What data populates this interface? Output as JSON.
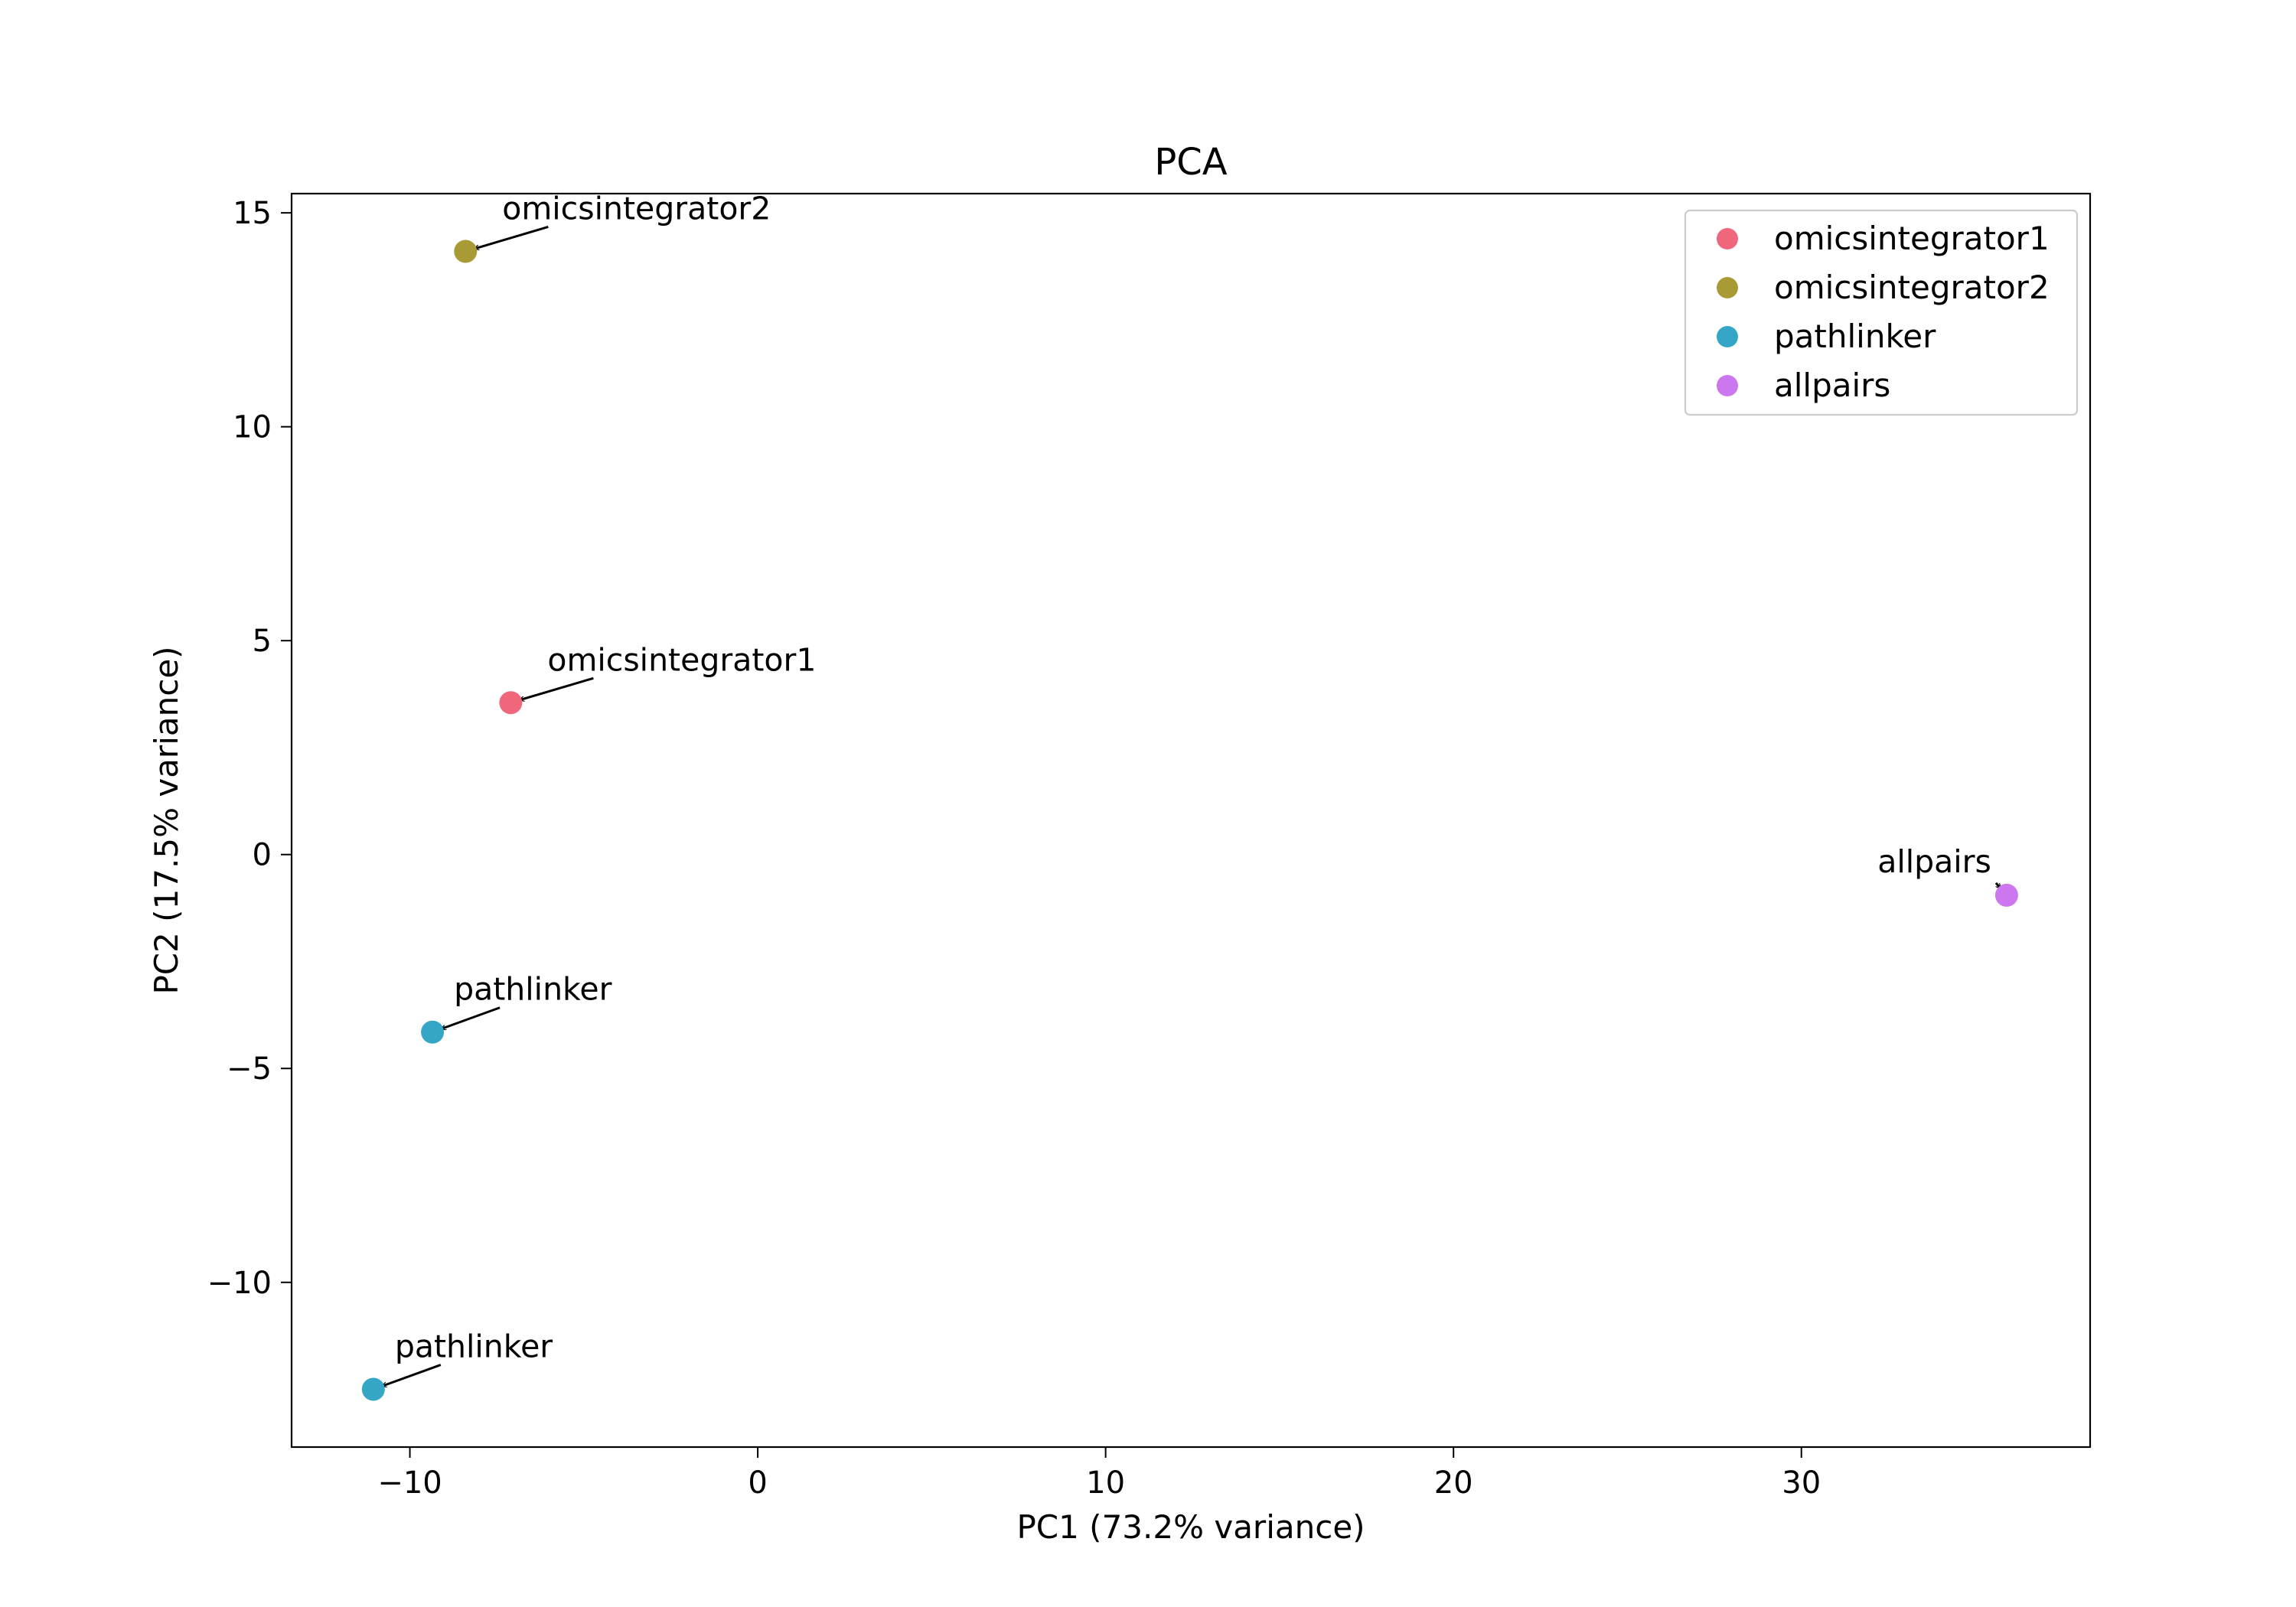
{
  "chart_data": {
    "type": "scatter",
    "title": "PCA",
    "xlabel": "PC1 (73.2% variance)",
    "ylabel": "PC2 (17.5% variance)",
    "xlim": [
      -13.4,
      38.3
    ],
    "ylim": [
      -13.85,
      15.45
    ],
    "xticks": [
      -10,
      0,
      10,
      20,
      30
    ],
    "yticks": [
      -10,
      -5,
      0,
      5,
      10,
      15
    ],
    "xtick_labels": [
      "−10",
      "0",
      "10",
      "20",
      "30"
    ],
    "ytick_labels": [
      "−10",
      "−5",
      "0",
      "5",
      "10",
      "15"
    ],
    "grid": false,
    "legend_position": "top-right",
    "series": [
      {
        "name": "omicsintegrator1",
        "color": "#f0677b",
        "points": [
          {
            "x": -7.1,
            "y": 3.55,
            "label": "omicsintegrator1"
          }
        ]
      },
      {
        "name": "omicsintegrator2",
        "color": "#a89b36",
        "points": [
          {
            "x": -8.4,
            "y": 14.1,
            "label": "omicsintegrator2"
          }
        ]
      },
      {
        "name": "pathlinker",
        "color": "#35a6c6",
        "points": [
          {
            "x": -9.35,
            "y": -4.15,
            "label": "pathlinker"
          },
          {
            "x": -11.05,
            "y": -12.5,
            "label": "pathlinker"
          }
        ]
      },
      {
        "name": "allpairs",
        "color": "#cc77f0",
        "points": [
          {
            "x": 35.9,
            "y": -0.95,
            "label": "allpairs"
          }
        ]
      }
    ]
  }
}
